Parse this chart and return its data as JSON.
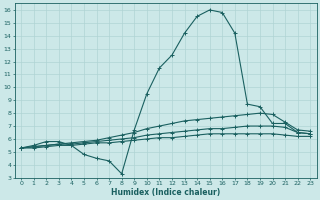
{
  "title": "",
  "xlabel": "Humidex (Indice chaleur)",
  "ylabel": "",
  "xlim": [
    -0.5,
    23.5
  ],
  "ylim": [
    3,
    16.5
  ],
  "xticks": [
    0,
    1,
    2,
    3,
    4,
    5,
    6,
    7,
    8,
    9,
    10,
    11,
    12,
    13,
    14,
    15,
    16,
    17,
    18,
    19,
    20,
    21,
    22,
    23
  ],
  "yticks": [
    3,
    4,
    5,
    6,
    7,
    8,
    9,
    10,
    11,
    12,
    13,
    14,
    15,
    16
  ],
  "background_color": "#cce8e8",
  "grid_color": "#b0d4d4",
  "line_color": "#1a6060",
  "line1_x": [
    0,
    1,
    2,
    3,
    4,
    5,
    6,
    7,
    8,
    9,
    10,
    11,
    12,
    13,
    14,
    15,
    16,
    17,
    18,
    19,
    20,
    21,
    22,
    23
  ],
  "line1_y": [
    5.3,
    5.5,
    5.8,
    5.8,
    5.5,
    4.8,
    4.5,
    4.3,
    3.3,
    6.7,
    9.5,
    11.5,
    12.5,
    14.2,
    15.5,
    16.0,
    15.8,
    14.2,
    8.7,
    8.5,
    7.2,
    7.2,
    6.5,
    6.4
  ],
  "line2_x": [
    0,
    1,
    2,
    3,
    4,
    5,
    6,
    7,
    8,
    9,
    10,
    11,
    12,
    13,
    14,
    15,
    16,
    17,
    18,
    19,
    20,
    21,
    22,
    23
  ],
  "line2_y": [
    5.3,
    5.4,
    5.5,
    5.6,
    5.7,
    5.8,
    5.9,
    6.1,
    6.3,
    6.5,
    6.8,
    7.0,
    7.2,
    7.4,
    7.5,
    7.6,
    7.7,
    7.8,
    7.9,
    8.0,
    7.9,
    7.3,
    6.7,
    6.6
  ],
  "line3_x": [
    0,
    1,
    2,
    3,
    4,
    5,
    6,
    7,
    8,
    9,
    10,
    11,
    12,
    13,
    14,
    15,
    16,
    17,
    18,
    19,
    20,
    21,
    22,
    23
  ],
  "line3_y": [
    5.3,
    5.4,
    5.5,
    5.6,
    5.6,
    5.7,
    5.8,
    5.9,
    6.0,
    6.1,
    6.3,
    6.4,
    6.5,
    6.6,
    6.7,
    6.8,
    6.8,
    6.9,
    7.0,
    7.0,
    7.0,
    6.9,
    6.5,
    6.4
  ],
  "line4_x": [
    0,
    1,
    2,
    3,
    4,
    5,
    6,
    7,
    8,
    9,
    10,
    11,
    12,
    13,
    14,
    15,
    16,
    17,
    18,
    19,
    20,
    21,
    22,
    23
  ],
  "line4_y": [
    5.3,
    5.3,
    5.4,
    5.5,
    5.5,
    5.6,
    5.7,
    5.7,
    5.8,
    5.9,
    6.0,
    6.1,
    6.1,
    6.2,
    6.3,
    6.4,
    6.4,
    6.4,
    6.4,
    6.4,
    6.4,
    6.3,
    6.2,
    6.2
  ],
  "marker_size": 2.5,
  "linewidth": 0.8,
  "xlabel_fontsize": 5.5,
  "tick_fontsize": 4.5
}
